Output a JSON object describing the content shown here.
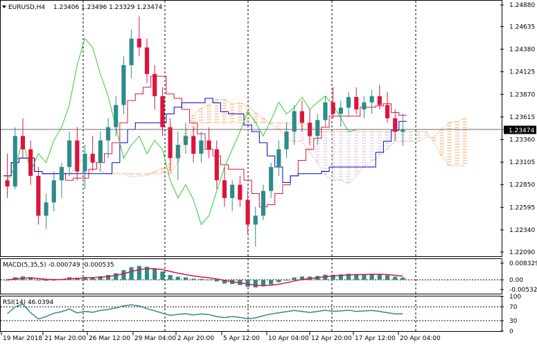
{
  "header": {
    "symbol_text": "EURUSD,H4",
    "ohlc_text": "1.23406 1.23496 1.23329 1.23474"
  },
  "current_price": "1.23474",
  "colors": {
    "bull": "#2e8b8b",
    "bear": "#dc143c",
    "tenkan": "#dc143c",
    "kijun": "#0000cd",
    "chikou": "#32cd32",
    "cloud_a": "#f4a460",
    "cloud_b": "#d8bfd8",
    "macd_hist": "#2e8b8b",
    "macd_signal": "#dc143c",
    "rsi": "#2e8b8b",
    "grid": "#000000"
  },
  "price_axis": {
    "ticks": [
      "1.24880",
      "1.24635",
      "1.24380",
      "1.24125",
      "1.23870",
      "1.23615",
      "1.23360",
      "1.23105",
      "1.22850",
      "1.22595",
      "1.22340",
      "1.22090"
    ],
    "min": 1.2205,
    "max": 1.2492
  },
  "macd_panel": {
    "title": "MACD(5,35,5) -0.000749 -0.000535",
    "ticks": [
      "0.008329",
      "0.00",
      "-0.005326"
    ]
  },
  "rsi_panel": {
    "title": "RSI(14) 46.0394",
    "ticks": [
      "100",
      "70",
      "30",
      "0"
    ]
  },
  "time_axis": {
    "labels": [
      "19 Mar 2018",
      "21 Mar 20:00",
      "26 Mar 12:00",
      "29 Mar 04:00",
      "2 Apr 20:00",
      "5 Apr 12:00",
      "10 Apr 04:00",
      "12 Apr 20:00",
      "17 Apr 12:00",
      "20 Apr 04:00"
    ]
  },
  "chart_data": {
    "type": "candlestick",
    "symbol": "EURUSD",
    "timeframe": "H4",
    "ylim": [
      1.2205,
      1.2492
    ],
    "candles": [
      [
        1.229,
        1.232,
        1.227,
        1.2283
      ],
      [
        1.2283,
        1.235,
        1.228,
        1.234
      ],
      [
        1.234,
        1.236,
        1.2315,
        1.2325
      ],
      [
        1.2325,
        1.2335,
        1.2285,
        1.2295
      ],
      [
        1.2295,
        1.2305,
        1.224,
        1.225
      ],
      [
        1.225,
        1.2275,
        1.2235,
        1.2265
      ],
      [
        1.2265,
        1.23,
        1.2255,
        1.229
      ],
      [
        1.229,
        1.231,
        1.227,
        1.2305
      ],
      [
        1.2305,
        1.2345,
        1.2295,
        1.2335
      ],
      [
        1.2335,
        1.235,
        1.229,
        1.23
      ],
      [
        1.23,
        1.233,
        1.228,
        1.232
      ],
      [
        1.232,
        1.234,
        1.23,
        1.231
      ],
      [
        1.231,
        1.2345,
        1.23,
        1.2335
      ],
      [
        1.2335,
        1.236,
        1.2315,
        1.235
      ],
      [
        1.235,
        1.2385,
        1.234,
        1.2375
      ],
      [
        1.2375,
        1.243,
        1.2365,
        1.242
      ],
      [
        1.242,
        1.246,
        1.2405,
        1.245
      ],
      [
        1.245,
        1.2475,
        1.243,
        1.244
      ],
      [
        1.244,
        1.245,
        1.24,
        1.241
      ],
      [
        1.241,
        1.242,
        1.237,
        1.2385
      ],
      [
        1.2385,
        1.2395,
        1.234,
        1.235
      ],
      [
        1.235,
        1.236,
        1.23,
        1.2315
      ],
      [
        1.2315,
        1.2345,
        1.229,
        1.233
      ],
      [
        1.233,
        1.2355,
        1.232,
        1.234
      ],
      [
        1.234,
        1.235,
        1.231,
        1.232
      ],
      [
        1.232,
        1.2345,
        1.231,
        1.2335
      ],
      [
        1.2335,
        1.235,
        1.2315,
        1.2325
      ],
      [
        1.2325,
        1.2335,
        1.228,
        1.229
      ],
      [
        1.229,
        1.2305,
        1.226,
        1.227
      ],
      [
        1.227,
        1.229,
        1.2255,
        1.2285
      ],
      [
        1.2285,
        1.2295,
        1.226,
        1.2268
      ],
      [
        1.2268,
        1.2278,
        1.223,
        1.224
      ],
      [
        1.224,
        1.226,
        1.2215,
        1.225
      ],
      [
        1.225,
        1.2285,
        1.2245,
        1.2278
      ],
      [
        1.2278,
        1.231,
        1.227,
        1.2305
      ],
      [
        1.2305,
        1.2335,
        1.2295,
        1.2325
      ],
      [
        1.2325,
        1.2355,
        1.2315,
        1.2345
      ],
      [
        1.2345,
        1.2375,
        1.233,
        1.2368
      ],
      [
        1.2368,
        1.238,
        1.2345,
        1.2355
      ],
      [
        1.2355,
        1.237,
        1.233,
        1.234
      ],
      [
        1.234,
        1.2365,
        1.233,
        1.2358
      ],
      [
        1.2358,
        1.2385,
        1.235,
        1.2378
      ],
      [
        1.2378,
        1.2395,
        1.236,
        1.2365
      ],
      [
        1.2365,
        1.238,
        1.235,
        1.2372
      ],
      [
        1.2372,
        1.239,
        1.2362,
        1.2384
      ],
      [
        1.2384,
        1.2395,
        1.2365,
        1.237
      ],
      [
        1.237,
        1.2385,
        1.236,
        1.2378
      ],
      [
        1.2378,
        1.2392,
        1.2365,
        1.2385
      ],
      [
        1.2385,
        1.2398,
        1.237,
        1.2375
      ],
      [
        1.2375,
        1.239,
        1.2355,
        1.236
      ],
      [
        1.236,
        1.237,
        1.2335,
        1.2345
      ],
      [
        1.2345,
        1.2365,
        1.2329,
        1.2347
      ]
    ]
  }
}
